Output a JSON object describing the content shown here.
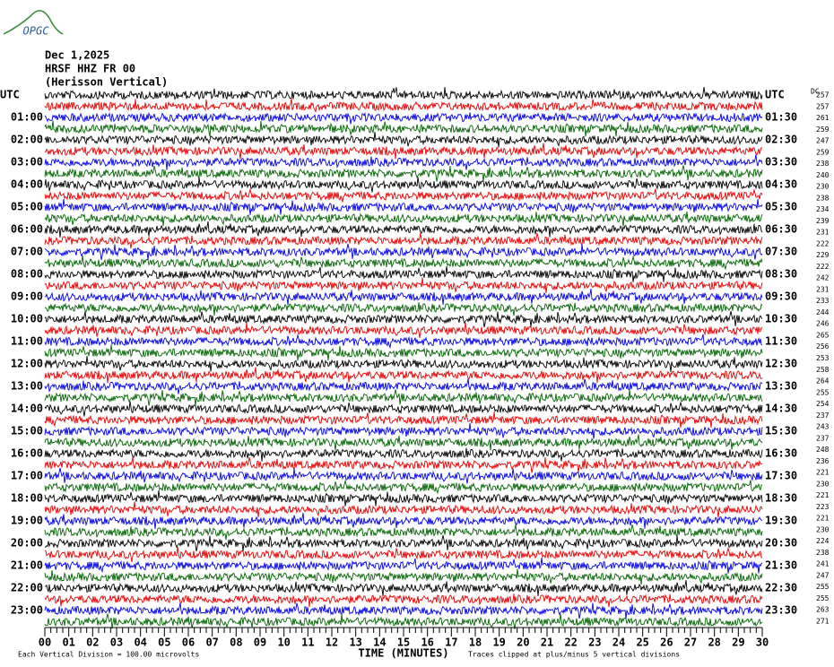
{
  "logo": "OPGC",
  "header": {
    "date": "Dec 1,2025",
    "station": "HRSF HHZ FR 00",
    "location": "(Herisson Vertical)"
  },
  "left_labels": [
    "UTC",
    "01:00",
    "02:00",
    "03:00",
    "04:00",
    "05:00",
    "06:00",
    "07:00",
    "08:00",
    "09:00",
    "10:00",
    "11:00",
    "12:00",
    "13:00",
    "14:00",
    "15:00",
    "16:00",
    "17:00",
    "18:00",
    "19:00",
    "20:00",
    "21:00",
    "22:00",
    "23:00"
  ],
  "right_labels": [
    "UTC",
    "01:30",
    "02:30",
    "03:30",
    "04:30",
    "05:30",
    "06:30",
    "07:30",
    "08:30",
    "09:30",
    "10:30",
    "11:30",
    "12:30",
    "13:30",
    "14:30",
    "15:30",
    "16:30",
    "17:30",
    "18:30",
    "19:30",
    "20:30",
    "21:30",
    "22:30",
    "23:30"
  ],
  "dc_label": "DC",
  "dc_values": [
    257,
    257,
    261,
    259,
    247,
    259,
    238,
    240,
    230,
    238,
    234,
    239,
    231,
    222,
    229,
    222,
    242,
    231,
    233,
    244,
    246,
    265,
    256,
    253,
    258,
    264,
    255,
    254,
    237,
    243,
    237,
    248,
    236,
    221,
    230,
    221,
    223,
    221,
    230,
    224,
    238,
    241,
    247,
    255,
    255,
    263,
    271
  ],
  "trace_colors": [
    "#000000",
    "#e80000",
    "#0000e8",
    "#006400"
  ],
  "x_axis": {
    "ticks": [
      "00",
      "01",
      "02",
      "03",
      "04",
      "05",
      "06",
      "07",
      "08",
      "09",
      "10",
      "11",
      "12",
      "13",
      "14",
      "15",
      "16",
      "17",
      "18",
      "19",
      "20",
      "21",
      "22",
      "23",
      "24",
      "25",
      "26",
      "27",
      "28",
      "29",
      "30"
    ],
    "label": "TIME (MINUTES)"
  },
  "footer": {
    "scale": "Each Vertical Division =  100.00 microvolts",
    "clip": "Traces clipped at plus/minus 5 vertical divisions"
  }
}
